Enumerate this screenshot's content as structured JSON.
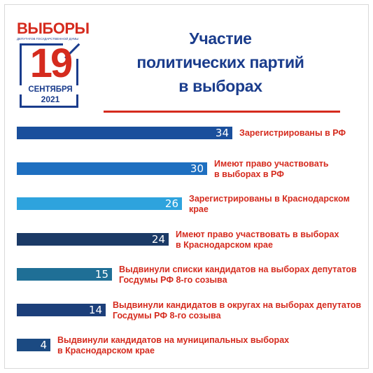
{
  "logo": {
    "word": "ВЫБОРЫ",
    "subtitle": "ДЕПУТАТОВ ГОСУДАРСТВЕННОЙ ДУМЫ",
    "day": "19",
    "month": "СЕНТЯБРЯ",
    "year": "2021"
  },
  "title": {
    "line1": "Участие",
    "line2": "политических партий",
    "line3": "в выборах"
  },
  "colors": {
    "brand_red": "#d52b1e",
    "brand_blue": "#1a3c8c",
    "bar_1": "#1a4f9c",
    "bar_2": "#1e6fc0",
    "bar_3": "#2ea3dd",
    "bar_4": "#1b3a66",
    "bar_5": "#1f6f96",
    "bar_6": "#1c3f7a",
    "bar_7": "#1b4a82"
  },
  "chart_data": {
    "type": "bar",
    "orientation": "horizontal",
    "title": "Участие политических партий в выборах",
    "xlabel": "",
    "ylabel": "",
    "categories": [
      "Зарегистрированы в РФ",
      "Имеют право участвовать в выборах в РФ",
      "Зарегистрированы в Краснодарском крае",
      "Имеют право участвовать в выборах в Краснодарском крае",
      "Выдвинули списки кандидатов на выборах депутатов Госдумы РФ 8-го созыва",
      "Выдвинули кандидатов в округах на выборах депутатов Госдумы РФ 8-го созыва",
      "Выдвинули кандидатов на муниципальных выборах в Краснодарском крае"
    ],
    "labels": [
      [
        "Зарегистрированы в РФ"
      ],
      [
        "Имеют право участвовать",
        "в выборах в РФ"
      ],
      [
        "Зарегистрированы в Краснодарском",
        "крае"
      ],
      [
        "Имеют право участвовать в выборах",
        "в Краснодарском крае"
      ],
      [
        "Выдвинули списки кандидатов на выборах депутатов",
        "Госдумы РФ 8-го созыва"
      ],
      [
        "Выдвинули кандидатов в округах на выборах депутатов",
        "Госдумы РФ 8-го созыва"
      ],
      [
        "Выдвинули кандидатов на муниципальных выборах",
        "в Краснодарском крае"
      ]
    ],
    "values": [
      34,
      30,
      26,
      24,
      15,
      14,
      4
    ],
    "value_labels": [
      "34",
      "30",
      "26",
      "24",
      "15",
      "14",
      "4"
    ],
    "xlim": [
      0,
      34
    ],
    "grid": false,
    "legend": "none"
  }
}
